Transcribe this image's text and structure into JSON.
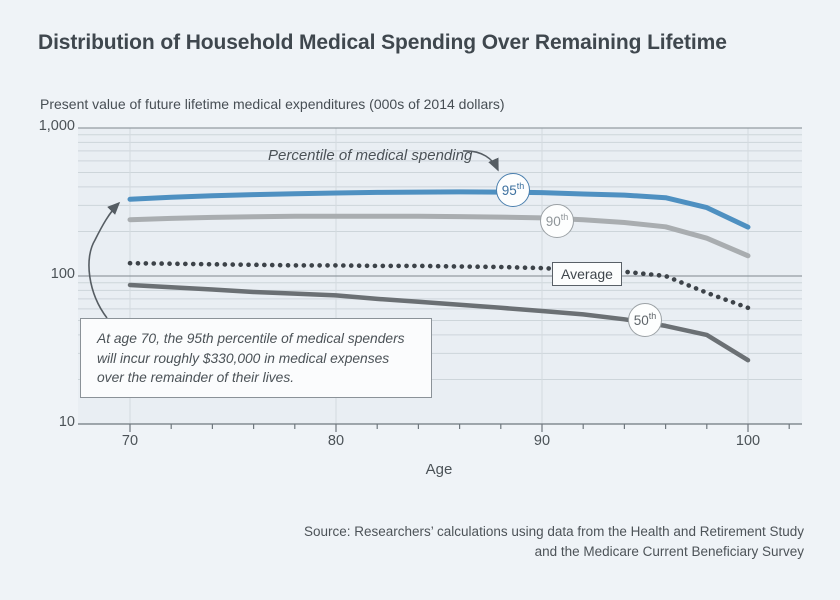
{
  "header": {
    "title": "Distribution of Household Medical Spending Over Remaining Lifetime",
    "subtitle": "Present value of future lifetime medical expenditures (000s of 2014 dollars)"
  },
  "chart_data": {
    "type": "line",
    "title": "Distribution of Household Medical Spending Over Remaining Lifetime",
    "ylabel": "Present value of future lifetime medical expenditures (000s of 2014 dollars)",
    "xlabel": "Age",
    "y_scale": "log",
    "ylim": [
      10,
      1000
    ],
    "xlim": [
      70,
      102
    ],
    "grid": true,
    "x": [
      70,
      72,
      74,
      76,
      78,
      80,
      82,
      84,
      86,
      88,
      90,
      92,
      94,
      96,
      98,
      100
    ],
    "series": [
      {
        "name": "95th percentile",
        "badge_num": "95",
        "badge_sup": "th",
        "style": "solid",
        "color": "#4e90c1",
        "line_width": 5,
        "values": [
          330,
          340,
          348,
          355,
          360,
          364,
          367,
          369,
          370,
          369,
          366,
          358,
          352,
          338,
          290,
          214
        ]
      },
      {
        "name": "90th percentile",
        "badge_num": "90",
        "badge_sup": "th",
        "style": "solid",
        "color": "#a9adb0",
        "line_width": 5,
        "values": [
          240,
          245,
          249,
          251,
          253,
          253,
          253,
          253,
          252,
          250,
          247,
          240,
          230,
          215,
          180,
          137
        ]
      },
      {
        "name": "Average",
        "label": "Average",
        "style": "dotted",
        "color": "#3d4349",
        "line_width": 4.6,
        "values": [
          122,
          121,
          120,
          119,
          118,
          118,
          117,
          117,
          116,
          115,
          113,
          110,
          107,
          100,
          77,
          61
        ]
      },
      {
        "name": "50th percentile",
        "badge_num": "50",
        "badge_sup": "th",
        "style": "solid",
        "color": "#6b7074",
        "line_width": 4.5,
        "values": [
          87,
          84,
          81,
          78,
          76,
          74,
          70,
          67,
          64,
          61,
          58,
          55,
          51,
          46,
          40,
          27
        ]
      }
    ],
    "y_tick_labels": [
      "1,000",
      "100",
      "10"
    ],
    "x_tick_labels": [
      "70",
      "80",
      "90",
      "100"
    ]
  },
  "annotations": {
    "percentile_pointer": "Percentile of medical spending",
    "callout": {
      "lines": [
        "At age 70, the 95th percentile of medical spenders",
        "will incur roughly $330,000 in medical expenses",
        "over the remainder of their lives."
      ]
    }
  },
  "source": {
    "lines": [
      "Source: Researchers’ calculations using data from the Health and Retirement Study",
      "and the Medicare Current Beneficiary Survey"
    ]
  },
  "colors": {
    "background": "#eff3f7",
    "plot_background": "#e9eef3",
    "grid_minor": "#cdd5da",
    "grid_major": "#7e878e",
    "grid_vertical": "#d4dadf",
    "axis": "#6f777e",
    "accent_blue": "#4e90c1",
    "gray_90th": "#a9adb0",
    "dark_50th": "#6b7074",
    "dotted_average": "#3d4349",
    "arrow": "#565d63"
  }
}
